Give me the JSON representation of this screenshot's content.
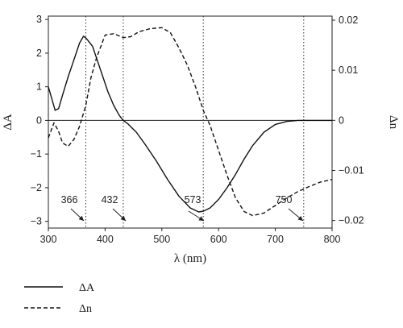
{
  "chart_data": {
    "type": "line",
    "title": "",
    "xlabel": "λ (nm)",
    "ylabel_left": "ΔA",
    "ylabel_right": "Δn",
    "xlim": [
      300,
      800
    ],
    "ylim_left": [
      -3.2,
      3.1
    ],
    "ylim_right": [
      -0.0215,
      0.0208
    ],
    "x_ticks": [
      "300",
      "400",
      "500",
      "600",
      "700",
      "800"
    ],
    "y_ticks_left": [
      "3",
      "2",
      "1",
      "0",
      "−1",
      "−2",
      "−3"
    ],
    "y_ticks_right": [
      "0.02",
      "0.01",
      "0",
      "−0.01",
      "−0.02"
    ],
    "grid": false,
    "legend_position": "bottom-left, below plot",
    "series": [
      {
        "name": "ΔA",
        "style": "solid",
        "axis": "left",
        "x": [
          300,
          306,
          312,
          318,
          325,
          335,
          345,
          355,
          362,
          366,
          371,
          378,
          385,
          395,
          405,
          415,
          425,
          432,
          440,
          455,
          470,
          490,
          510,
          530,
          550,
          565,
          573,
          585,
          600,
          615,
          630,
          645,
          660,
          680,
          700,
          720,
          740,
          760,
          780,
          800
        ],
        "y": [
          1.0,
          0.65,
          0.3,
          0.35,
          0.75,
          1.3,
          1.8,
          2.3,
          2.5,
          2.45,
          2.35,
          2.2,
          1.85,
          1.35,
          0.85,
          0.45,
          0.15,
          0.0,
          -0.1,
          -0.35,
          -0.7,
          -1.2,
          -1.75,
          -2.25,
          -2.6,
          -2.72,
          -2.7,
          -2.6,
          -2.35,
          -2.0,
          -1.6,
          -1.15,
          -0.75,
          -0.35,
          -0.12,
          -0.03,
          0.0,
          0.0,
          0.0,
          0.0
        ]
      },
      {
        "name": "Δn",
        "style": "dashed",
        "axis": "right",
        "x": [
          300,
          310,
          318,
          325,
          335,
          345,
          355,
          366,
          375,
          385,
          400,
          415,
          432,
          445,
          460,
          480,
          500,
          515,
          530,
          545,
          560,
          573,
          585,
          600,
          615,
          630,
          645,
          660,
          680,
          700,
          720,
          740,
          760,
          780,
          800
        ],
        "y": [
          -0.0035,
          -0.0005,
          -0.0022,
          -0.0045,
          -0.0052,
          -0.0038,
          -0.0012,
          0.003,
          0.0085,
          0.0125,
          0.017,
          0.0173,
          0.0165,
          0.0167,
          0.0177,
          0.0183,
          0.0185,
          0.0175,
          0.0145,
          0.011,
          0.0065,
          0.002,
          -0.001,
          -0.006,
          -0.011,
          -0.0155,
          -0.0182,
          -0.019,
          -0.0185,
          -0.017,
          -0.0155,
          -0.0142,
          -0.0132,
          -0.0123,
          -0.0118
        ]
      }
    ],
    "annotations": [
      {
        "text": "366",
        "x": 366
      },
      {
        "text": "432",
        "x": 432
      },
      {
        "text": "573",
        "x": 573
      },
      {
        "text": "750",
        "x": 750
      }
    ]
  },
  "legend": {
    "items": [
      {
        "label": "ΔA",
        "style": "solid"
      },
      {
        "label": "Δn",
        "style": "dashed"
      }
    ]
  }
}
